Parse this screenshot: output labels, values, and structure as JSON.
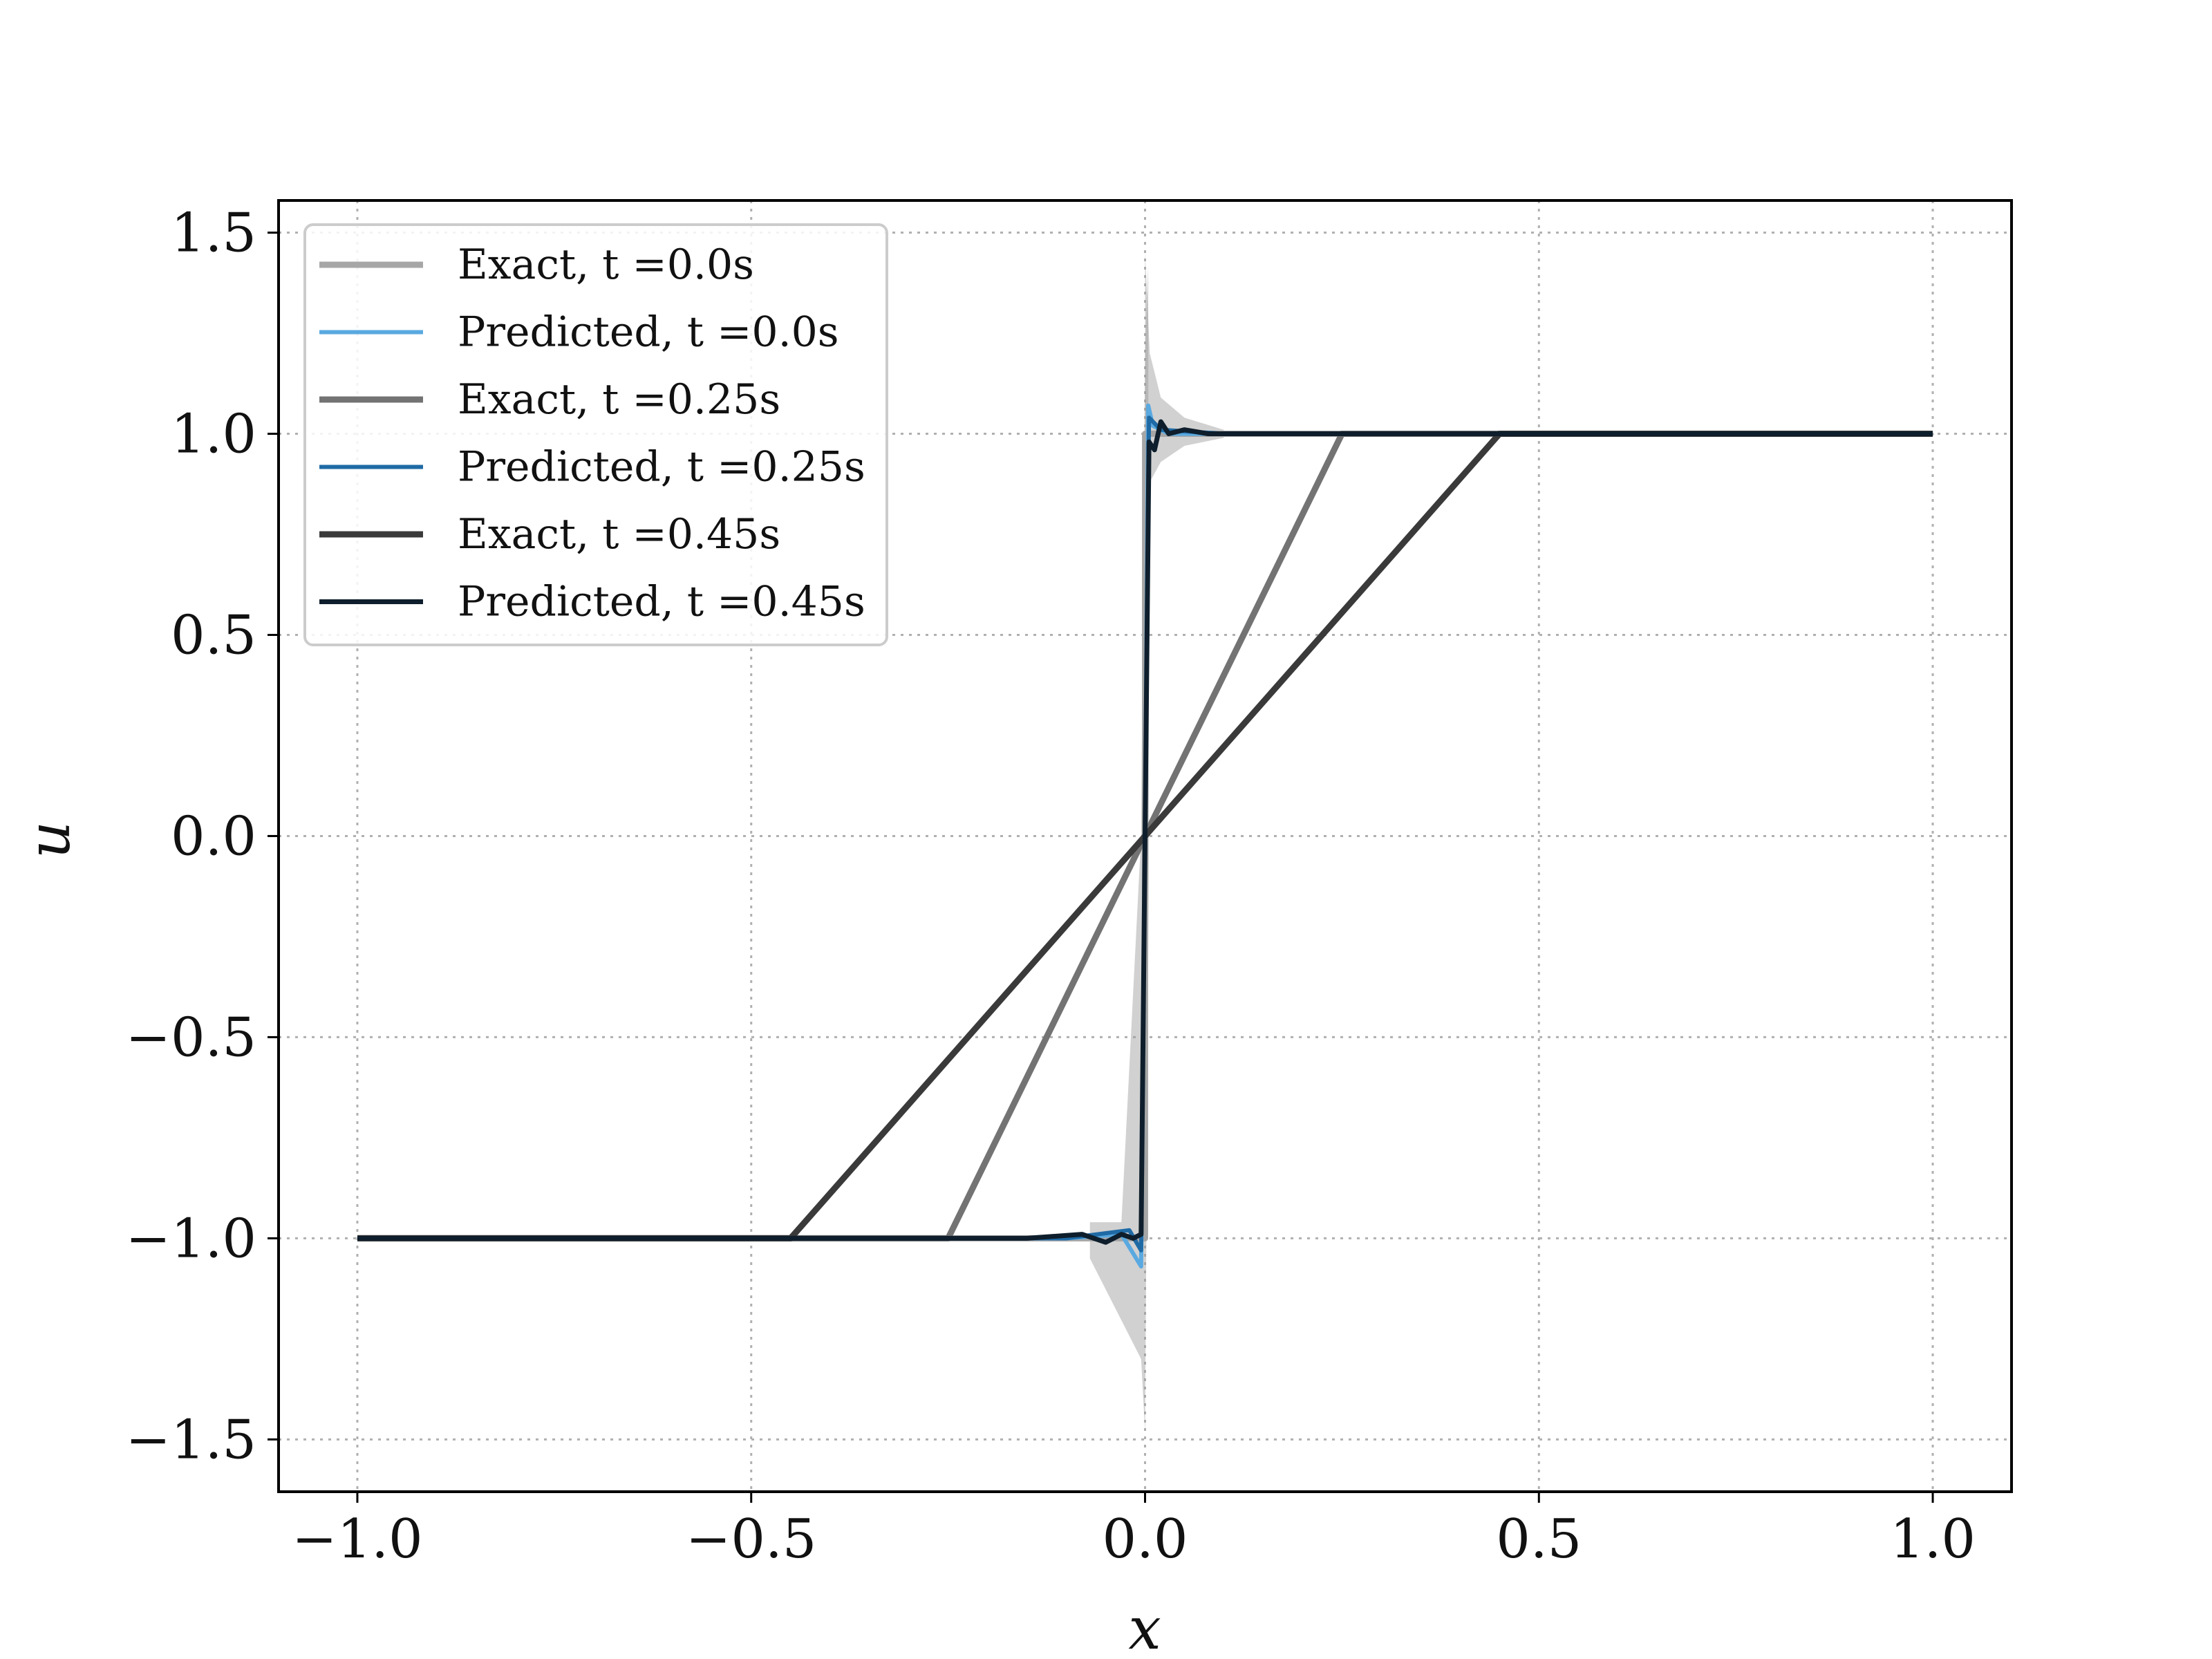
{
  "chart_data": {
    "type": "line",
    "xlabel": "x",
    "ylabel": "u",
    "xlim": [
      -1.1,
      1.1
    ],
    "ylim": [
      -1.63,
      1.58
    ],
    "xticks": [
      -1.0,
      -0.5,
      0.0,
      0.5,
      1.0
    ],
    "yticks": [
      -1.5,
      -1.0,
      -0.5,
      0.0,
      0.5,
      1.0,
      1.5
    ],
    "xtick_labels": [
      "−1.0",
      "−0.5",
      "0.0",
      "0.5",
      "1.0"
    ],
    "ytick_labels": [
      "−1.5",
      "−1.0",
      "−0.5",
      "0.0",
      "0.5",
      "1.0",
      "1.5"
    ],
    "grid": true,
    "legend_position": "top-left",
    "series": [
      {
        "name": "Exact, t =0.0s",
        "color": "#a6a6a6",
        "x": [
          -1.0,
          -0.0001,
          0.0001,
          1.0
        ],
        "y": [
          -1.0,
          -1.0,
          1.0,
          1.0
        ]
      },
      {
        "name": "Predicted, t =0.0s",
        "color": "#5aa9e0",
        "x": [
          -1.0,
          -0.5,
          -0.1,
          -0.03,
          -0.005,
          0.0,
          0.004,
          0.01,
          0.03,
          0.1,
          0.5,
          1.0
        ],
        "y": [
          -1.0,
          -1.0,
          -1.0,
          -0.99,
          -1.07,
          0.0,
          1.07,
          1.02,
          1.0,
          1.0,
          1.0,
          1.0
        ]
      },
      {
        "name": "Exact, t =0.25s",
        "color": "#737373",
        "x": [
          -1.0,
          -0.25,
          0.25,
          1.0
        ],
        "y": [
          -1.0,
          -1.0,
          1.0,
          1.0
        ]
      },
      {
        "name": "Predicted, t =0.25s",
        "color": "#1f6aa5",
        "x": [
          -1.0,
          -0.5,
          -0.1,
          -0.02,
          -0.005,
          0.0,
          0.005,
          0.02,
          0.1,
          0.5,
          1.0
        ],
        "y": [
          -1.0,
          -1.0,
          -1.0,
          -0.98,
          -1.03,
          0.0,
          1.04,
          1.01,
          1.0,
          1.0,
          1.0
        ]
      },
      {
        "name": "Exact, t =0.45s",
        "color": "#3a3a3a",
        "x": [
          -1.0,
          -0.45,
          0.45,
          1.0
        ],
        "y": [
          -1.0,
          -1.0,
          1.0,
          1.0
        ]
      },
      {
        "name": "Predicted, t =0.45s",
        "color": "#0e1e2c",
        "x": [
          -1.0,
          -0.6,
          -0.3,
          -0.15,
          -0.08,
          -0.05,
          -0.03,
          -0.015,
          -0.005,
          0.0,
          0.005,
          0.012,
          0.02,
          0.03,
          0.05,
          0.08,
          0.15,
          0.3,
          0.6,
          1.0
        ],
        "y": [
          -1.0,
          -1.0,
          -1.0,
          -1.0,
          -0.99,
          -1.01,
          -0.99,
          -1.0,
          -0.99,
          0.0,
          0.98,
          0.96,
          1.03,
          1.0,
          1.01,
          1.0,
          1.0,
          1.0,
          1.0,
          1.0
        ]
      }
    ]
  }
}
